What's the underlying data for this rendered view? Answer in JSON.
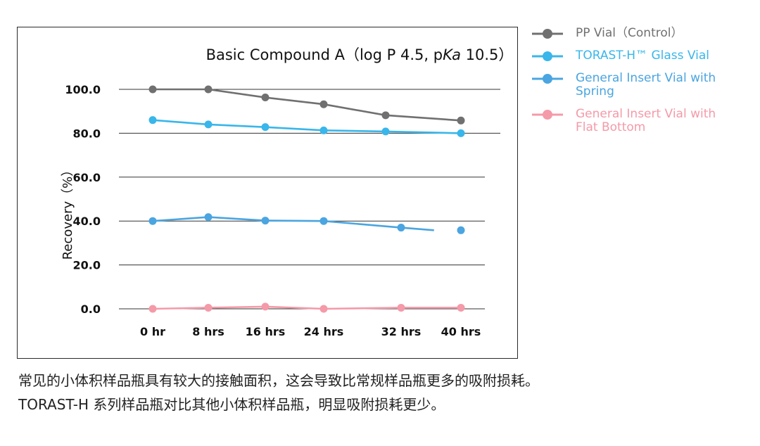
{
  "chart_data": {
    "type": "line",
    "title_parts": [
      "Basic Compound A（log P 4.5, p",
      "Ka",
      " 10.5）"
    ],
    "ylabel": "Recovery（%）",
    "xlabel": "",
    "categories": [
      "0 hr",
      "8 hrs",
      "16 hrs",
      "24 hrs",
      "32 hrs",
      "40 hrs"
    ],
    "y_ticks": [
      "100.0",
      "80.0",
      "60.0",
      "40.0",
      "20.0",
      "0.0"
    ],
    "ylim": [
      0,
      100
    ],
    "grid": true,
    "legend_position": "right",
    "series": [
      {
        "name": "PP Vial（Control）",
        "color": "#707070",
        "values": [
          100.0,
          100.0,
          96.3,
          93.2,
          88.2,
          85.8
        ]
      },
      {
        "name": "TORAST-H™ Glass Vial",
        "color": "#39b6ea",
        "values": [
          86.0,
          84.0,
          82.8,
          81.3,
          80.8,
          80.0
        ]
      },
      {
        "name": "General Insert Vial with Spring",
        "color": "#4aa5e0",
        "values": [
          40.0,
          41.8,
          40.2,
          40.0,
          37.0,
          35.8
        ]
      },
      {
        "name": "General Insert Vial with Flat Bottom",
        "color": "#f49aa8",
        "values": [
          0.0,
          0.5,
          1.0,
          0.0,
          0.5,
          0.5
        ]
      }
    ]
  },
  "caption": {
    "line1": "常见的小体积样品瓶具有较大的接触面积，这会导致比常规样品瓶更多的吸附损耗。",
    "line2": "TORAST-H 系列样品瓶对比其他小体积样品瓶，明显吸附损耗更少。"
  }
}
